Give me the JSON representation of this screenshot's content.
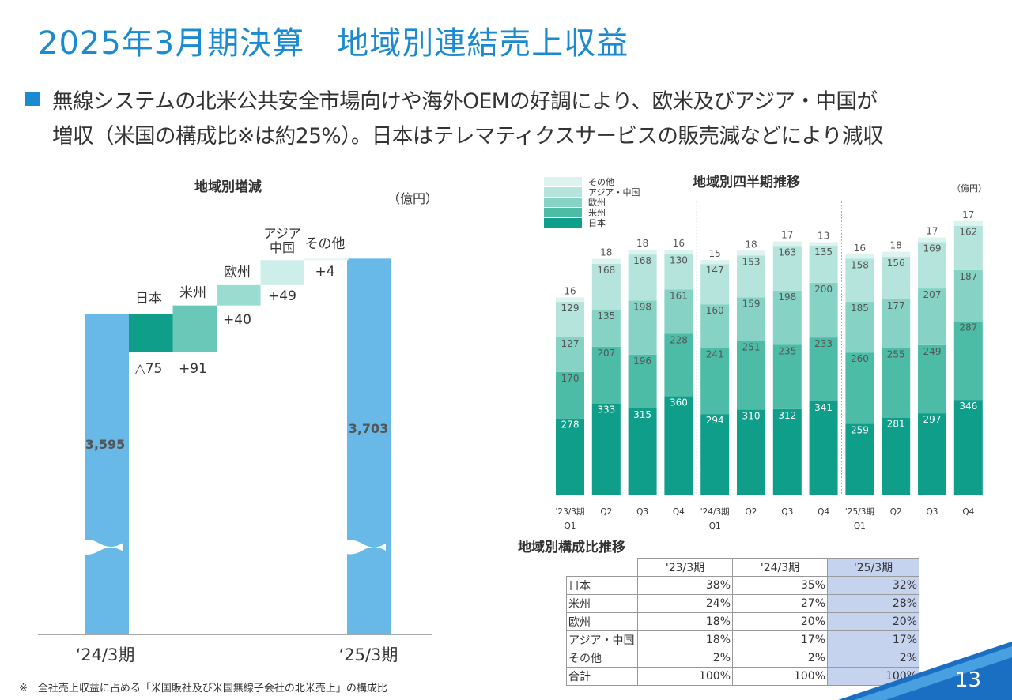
{
  "title": "2025年3月期決算　地域別連結売上収益",
  "bullet": {
    "line1": "無線システムの北米公共安全市場向けや海外OEMの好調により、欧米及びアジア・中国が",
    "line2": "増収（米国の構成比※は約25%）。日本はテレマティクスサービスの販売減などにより減収"
  },
  "waterfall": {
    "title": "地域別増減",
    "unit": "（億円）",
    "start": {
      "label": "‘24/3期",
      "value": 3595,
      "value_label": "3,595"
    },
    "end": {
      "label": "‘25/3期",
      "value": 3703,
      "value_label": "3,703"
    },
    "steps": [
      {
        "name": "日本",
        "delta": -75,
        "delta_label": "△75",
        "color": "#0f9e8a"
      },
      {
        "name": "米州",
        "delta": 91,
        "delta_label": "+91",
        "color": "#69c8b8"
      },
      {
        "name": "欧州",
        "delta": 40,
        "delta_label": "+40",
        "color": "#9bdcd1"
      },
      {
        "name": "アジア・中国",
        "name_line1": "アジア",
        "name_line2": "中国",
        "delta": 49,
        "delta_label": "+49",
        "color": "#cdeee9"
      },
      {
        "name": "その他",
        "delta": 4,
        "delta_label": "+4",
        "color": "#e8f7f5"
      }
    ],
    "bar_color": "#68b9e8"
  },
  "chart_data": {
    "type": "bar",
    "stacked": true,
    "title": "地域別四半期推移",
    "unit": "（億円）",
    "categories": [
      "'23/3期 Q1",
      "Q2",
      "Q3",
      "Q4",
      "'24/3期 Q1",
      "Q2",
      "Q3",
      "Q4",
      "'25/3期 Q1",
      "Q2",
      "Q3",
      "Q4"
    ],
    "tick_line1": [
      "'23/3期",
      "Q2",
      "Q3",
      "Q4",
      "'24/3期",
      "Q2",
      "Q3",
      "Q4",
      "'25/3期",
      "Q2",
      "Q3",
      "Q4"
    ],
    "tick_line2": [
      "Q1",
      "",
      "",
      "",
      "Q1",
      "",
      "",
      "",
      "Q1",
      "",
      "",
      ""
    ],
    "series": [
      {
        "name": "日本",
        "color": "#0f9e8a",
        "values": [
          278,
          333,
          315,
          360,
          294,
          310,
          312,
          341,
          259,
          281,
          297,
          346
        ]
      },
      {
        "name": "米州",
        "color": "#4cbca6",
        "values": [
          170,
          207,
          196,
          228,
          241,
          251,
          235,
          233,
          260,
          255,
          249,
          287
        ]
      },
      {
        "name": "欧州",
        "color": "#86d3c5",
        "values": [
          127,
          135,
          198,
          161,
          160,
          159,
          198,
          200,
          185,
          177,
          207,
          187
        ]
      },
      {
        "name": "アジア・中国",
        "color": "#b4e4db",
        "values": [
          129,
          168,
          168,
          130,
          147,
          153,
          163,
          135,
          158,
          156,
          169,
          162
        ]
      },
      {
        "name": "その他",
        "color": "#ddf3ef",
        "values": [
          16,
          18,
          18,
          16,
          15,
          18,
          17,
          13,
          16,
          18,
          17,
          17
        ]
      }
    ],
    "legend_order": [
      "その他",
      "アジア・中国",
      "欧州",
      "米州",
      "日本"
    ]
  },
  "share_table": {
    "title": "地域別構成比推移",
    "headers": [
      "'23/3期",
      "'24/3期",
      "'25/3期"
    ],
    "rows": [
      {
        "label": "日本",
        "values": [
          "38%",
          "35%",
          "32%"
        ]
      },
      {
        "label": "米州",
        "values": [
          "24%",
          "27%",
          "28%"
        ]
      },
      {
        "label": "欧州",
        "values": [
          "18%",
          "20%",
          "20%"
        ]
      },
      {
        "label": "アジア・中国",
        "values": [
          "18%",
          "17%",
          "17%"
        ]
      },
      {
        "label": "その他",
        "values": [
          "2%",
          "2%",
          "2%"
        ]
      },
      {
        "label": "合計",
        "values": [
          "100%",
          "100%",
          "100%"
        ]
      }
    ]
  },
  "footnote": "※　全社売上収益に占める「米国販社及び米国無線子会社の北米売上」の構成比",
  "page_number": "13"
}
